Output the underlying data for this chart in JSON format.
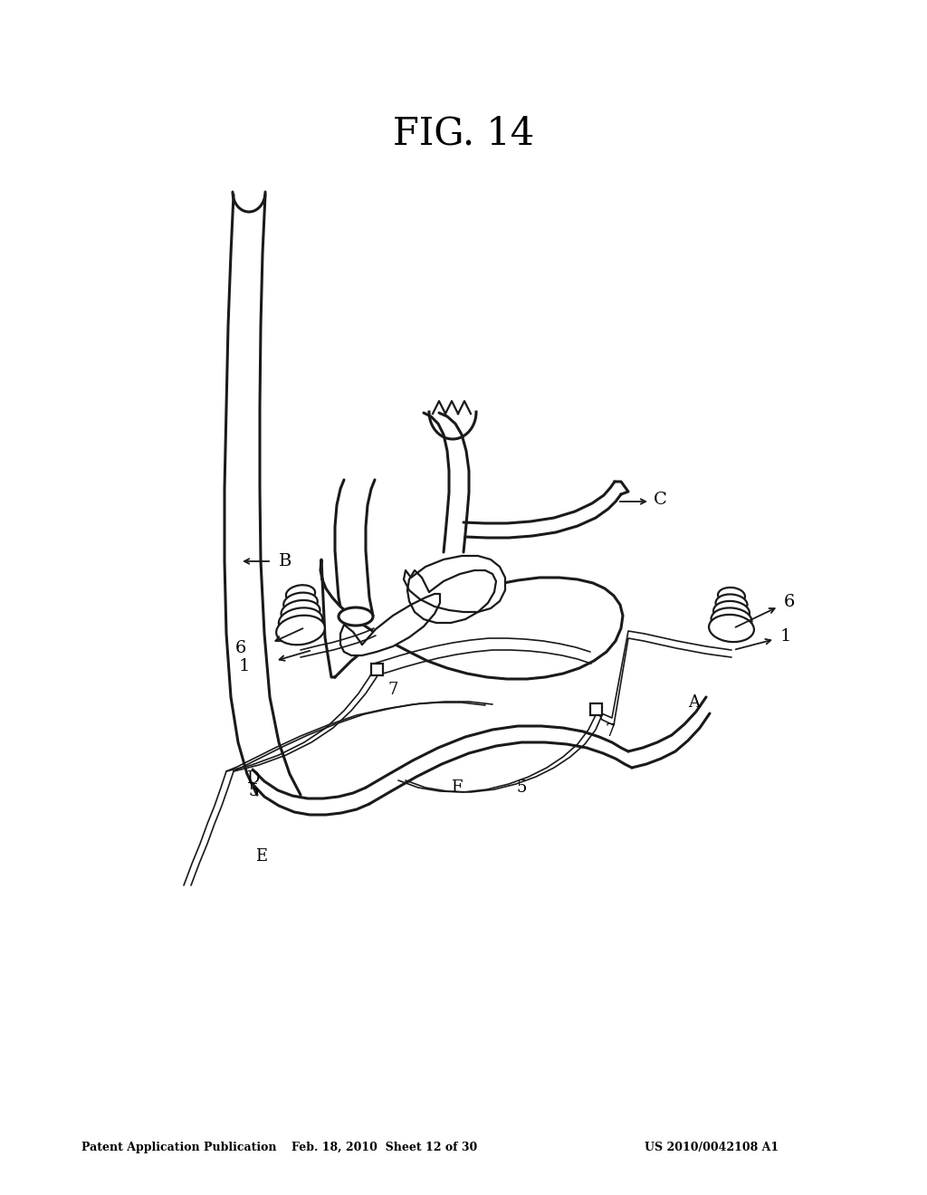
{
  "title": "FIG. 14",
  "header_left": "Patent Application Publication",
  "header_mid": "Feb. 18, 2010  Sheet 12 of 30",
  "header_right": "US 2010/0042108 A1",
  "bg_color": "#ffffff",
  "line_color": "#1a1a1a",
  "figsize": [
    10.24,
    13.2
  ],
  "dpi": 100
}
